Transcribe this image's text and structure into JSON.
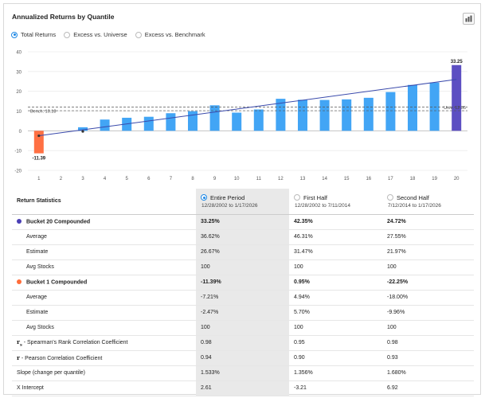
{
  "header": {
    "title": "Annualized Returns by Quantile",
    "export_icon": "export-chart-icon"
  },
  "radios": [
    {
      "label": "Total Returns",
      "selected": true
    },
    {
      "label": "Excess vs. Universe",
      "selected": false
    },
    {
      "label": "Excess vs. Benchmark",
      "selected": false
    }
  ],
  "chart_data": {
    "type": "bar",
    "categories": [
      "1",
      "2",
      "3",
      "4",
      "5",
      "6",
      "7",
      "8",
      "9",
      "10",
      "11",
      "12",
      "13",
      "14",
      "15",
      "16",
      "17",
      "18",
      "19",
      "20"
    ],
    "values": [
      -11.39,
      0,
      1.8,
      5.7,
      6.6,
      7.1,
      8.9,
      9.9,
      12.9,
      9.2,
      10.8,
      16.2,
      15.7,
      15.6,
      15.9,
      16.7,
      19.6,
      23.2,
      24.4,
      33.25
    ],
    "ylim": [
      -20,
      40
    ],
    "yticks": [
      -20,
      -10,
      0,
      10,
      20,
      30,
      40
    ],
    "grid": "horizontal",
    "bar_colors": {
      "default": "#42a5f5",
      "first": "#ff7043",
      "last": "#5c4fc2"
    },
    "data_labels": [
      {
        "category": "1",
        "text": "-11.39"
      },
      {
        "category": "20",
        "text": "33.25"
      }
    ],
    "trend_line": {
      "from": [
        "1",
        -2.5
      ],
      "to": [
        "20",
        26.0
      ],
      "color": "#3949ab"
    },
    "trend_markers": [
      [
        "1",
        -2.5
      ],
      [
        "3",
        -0.3
      ]
    ],
    "reference_lines": [
      {
        "label": "Bench: 10.18",
        "value": 10.18,
        "position": "left"
      },
      {
        "label": "Univ: 12.05",
        "value": 12.05,
        "position": "right"
      }
    ]
  },
  "stats": {
    "header_label": "Return Statistics",
    "columns": [
      {
        "label": "Entire Period",
        "dates": "12/28/2002 to 1/17/2026",
        "selected": true
      },
      {
        "label": "First Half",
        "dates": "12/28/2002 to 7/11/2014",
        "selected": false
      },
      {
        "label": "Second Half",
        "dates": "7/12/2014 to 1/17/2026",
        "selected": false
      }
    ],
    "rows": [
      {
        "label": "Bucket 20 Compounded",
        "values": [
          "33.25%",
          "42.35%",
          "24.72%"
        ],
        "bold": true,
        "bullet": "#4a3fb5"
      },
      {
        "label": "Average",
        "values": [
          "36.62%",
          "46.31%",
          "27.55%"
        ],
        "sub": true
      },
      {
        "label": "Estimate",
        "values": [
          "26.67%",
          "31.47%",
          "21.97%"
        ],
        "sub": true
      },
      {
        "label": "Avg Stocks",
        "values": [
          "100",
          "100",
          "100"
        ],
        "sub": true
      },
      {
        "label": "Bucket 1 Compounded",
        "values": [
          "-11.39%",
          "0.95%",
          "-22.25%"
        ],
        "bold": true,
        "bullet": "#ff6d3a"
      },
      {
        "label": "Average",
        "values": [
          "-7.21%",
          "4.94%",
          "-18.00%"
        ],
        "sub": true
      },
      {
        "label": "Estimate",
        "values": [
          "-2.47%",
          "5.70%",
          "-9.96%"
        ],
        "sub": true
      },
      {
        "label": "Avg Stocks",
        "values": [
          "100",
          "100",
          "100"
        ],
        "sub": true
      },
      {
        "symbol": "r",
        "symbol_sub": "s",
        "label": " - Spearman's Rank Correlation Coefficient",
        "values": [
          "0.98",
          "0.95",
          "0.98"
        ]
      },
      {
        "symbol": "r",
        "label": " - Pearson Correlation Coefficient",
        "values": [
          "0.94",
          "0.90",
          "0.93"
        ]
      },
      {
        "label": "Slope (change per quantile)",
        "values": [
          "1.533%",
          "1.356%",
          "1.680%"
        ]
      },
      {
        "label": "X Intercept",
        "values": [
          "2.61",
          "-3.21",
          "6.92"
        ]
      }
    ]
  }
}
